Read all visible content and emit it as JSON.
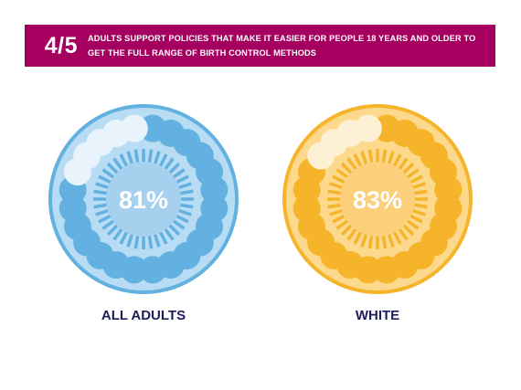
{
  "banner": {
    "fraction": "4/5",
    "text": "ADULTS SUPPORT POLICIES THAT MAKE IT EASIER FOR PEOPLE 18 YEARS AND OLDER TO GET THE FULL RANGE OF BIRTH CONTROL METHODS"
  },
  "colors": {
    "banner": "#a5005f",
    "label_text": "#1d1d5c",
    "blue": {
      "ring": "#63b1e0",
      "body": "#b8dcf3",
      "center": "#a5d1ee",
      "pill": "#63b1e0",
      "pill_empty": "#e8f3fb"
    },
    "orange": {
      "ring": "#f5b42a",
      "body": "#fcd98c",
      "center": "#fcd07a",
      "pill": "#f5b42a",
      "pill_empty": "#fdf0d4"
    }
  },
  "chart_data": [
    {
      "type": "pie",
      "category": "ALL ADULTS",
      "value": 81,
      "value_label": "81%",
      "color_scheme": "blue"
    },
    {
      "type": "pie",
      "category": "WHITE",
      "value": 83,
      "value_label": "83%",
      "color_scheme": "orange"
    }
  ]
}
